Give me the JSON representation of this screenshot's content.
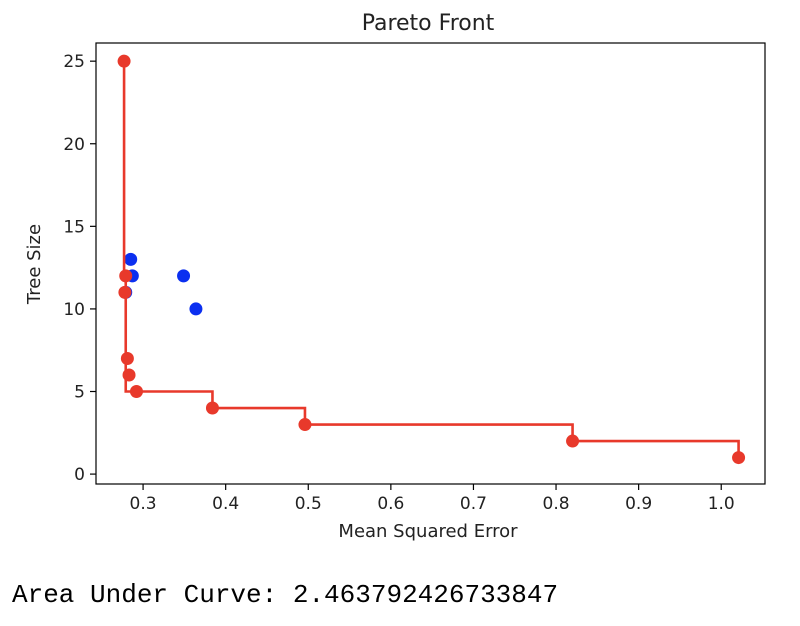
{
  "chart_data": {
    "type": "scatter",
    "title": "Pareto Front",
    "xlabel": "Mean Squared Error",
    "ylabel": "Tree Size",
    "xlim": [
      0.243,
      1.053
    ],
    "ylim": [
      -0.6,
      26.1
    ],
    "xticks": [
      0.3,
      0.4,
      0.5,
      0.6,
      0.7,
      0.8,
      0.9,
      1.0
    ],
    "xtick_labels": [
      "0.3",
      "0.4",
      "0.5",
      "0.6",
      "0.7",
      "0.8",
      "0.9",
      "1.0"
    ],
    "yticks": [
      0,
      5,
      10,
      15,
      20,
      25
    ],
    "ytick_labels": [
      "0",
      "5",
      "10",
      "15",
      "20",
      "25"
    ],
    "grid": false,
    "series": [
      {
        "color": "#0b2ff0",
        "kind": "scatter",
        "points": [
          {
            "x": 0.285,
            "y": 13
          },
          {
            "x": 0.287,
            "y": 12
          },
          {
            "x": 0.349,
            "y": 12
          },
          {
            "x": 0.364,
            "y": 10
          },
          {
            "x": 0.279,
            "y": 11
          }
        ]
      },
      {
        "color": "#e8392b",
        "kind": "scatter",
        "points": [
          {
            "x": 0.277,
            "y": 25
          },
          {
            "x": 0.279,
            "y": 12
          },
          {
            "x": 0.278,
            "y": 11
          },
          {
            "x": 0.281,
            "y": 7
          },
          {
            "x": 0.283,
            "y": 6
          },
          {
            "x": 0.292,
            "y": 5
          },
          {
            "x": 0.384,
            "y": 4
          },
          {
            "x": 0.496,
            "y": 3
          },
          {
            "x": 0.82,
            "y": 2
          },
          {
            "x": 1.021,
            "y": 1
          }
        ]
      },
      {
        "color": "#e8392b",
        "kind": "step-line",
        "points": [
          {
            "x": 0.277,
            "y": 25
          },
          {
            "x": 0.277,
            "y": 12
          },
          {
            "x": 0.279,
            "y": 12
          },
          {
            "x": 0.279,
            "y": 5
          },
          {
            "x": 0.384,
            "y": 5
          },
          {
            "x": 0.384,
            "y": 4
          },
          {
            "x": 0.496,
            "y": 4
          },
          {
            "x": 0.496,
            "y": 3
          },
          {
            "x": 0.82,
            "y": 3
          },
          {
            "x": 0.82,
            "y": 2
          },
          {
            "x": 1.021,
            "y": 2
          },
          {
            "x": 1.021,
            "y": 1
          }
        ]
      }
    ]
  },
  "output": {
    "auc_text": "Area Under Curve: 2.463792426733847"
  }
}
